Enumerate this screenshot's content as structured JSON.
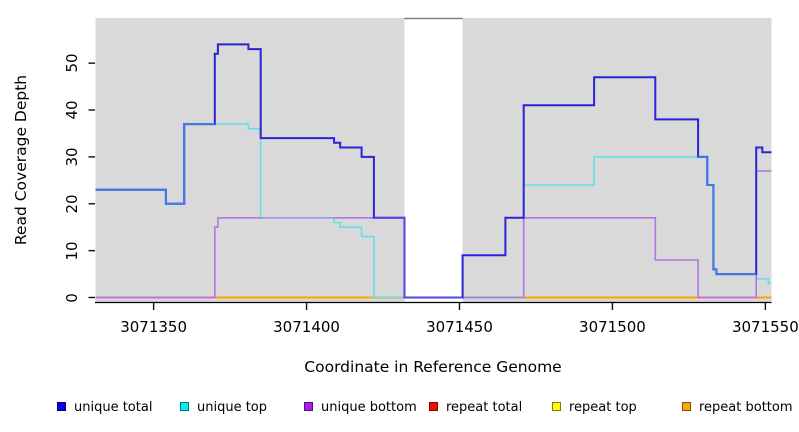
{
  "chart_data": {
    "type": "line",
    "subtype": "step-coverage-plot",
    "title": "",
    "xlabel": "Coordinate in Reference Genome",
    "ylabel": "Read Coverage Depth",
    "xlim": [
      3071331,
      3071552
    ],
    "ylim": [
      0,
      60
    ],
    "x_ticks": [
      3071350,
      3071400,
      3071450,
      3071500,
      3071550
    ],
    "x_tick_labels": [
      "3071350",
      "3071400",
      "3071450",
      "3071500",
      "3071550"
    ],
    "y_ticks": [
      0,
      10,
      20,
      30,
      40,
      50
    ],
    "y_tick_labels": [
      "0",
      "10",
      "20",
      "30",
      "40",
      "50"
    ],
    "grid": false,
    "plot_background": "#d9d9d9",
    "gap_region": {
      "x0": 3071432,
      "x1": 3071451,
      "color": "#ffffff",
      "top_border_color": "#808080"
    },
    "legend_position": "bottom",
    "series": [
      {
        "name": "unique total",
        "color": "#2a23d9",
        "width": 2,
        "step_points": [
          [
            3071331,
            23
          ],
          [
            3071354,
            20
          ],
          [
            3071360,
            37
          ],
          [
            3071370,
            52
          ],
          [
            3071371,
            54
          ],
          [
            3071381,
            53
          ],
          [
            3071385,
            34
          ],
          [
            3071409,
            33
          ],
          [
            3071411,
            32
          ],
          [
            3071418,
            30
          ],
          [
            3071422,
            17
          ],
          [
            3071432,
            0
          ],
          [
            3071451,
            9
          ],
          [
            3071465,
            17
          ],
          [
            3071471,
            41
          ],
          [
            3071494,
            47
          ],
          [
            3071514,
            38
          ],
          [
            3071528,
            30
          ],
          [
            3071531,
            24
          ],
          [
            3071533,
            6
          ],
          [
            3071534,
            5
          ],
          [
            3071547,
            32
          ],
          [
            3071549,
            31
          ]
        ],
        "end_x": 3071552
      },
      {
        "name": "unique top",
        "color": "#63dfe8",
        "width": 1.6,
        "step_points": [
          [
            3071331,
            23
          ],
          [
            3071354,
            20
          ],
          [
            3071360,
            37
          ],
          [
            3071381,
            36
          ],
          [
            3071385,
            17
          ],
          [
            3071409,
            16
          ],
          [
            3071411,
            15
          ],
          [
            3071418,
            13
          ],
          [
            3071422,
            0
          ],
          [
            3071471,
            24
          ],
          [
            3071494,
            30
          ],
          [
            3071531,
            24
          ],
          [
            3071533,
            6
          ],
          [
            3071534,
            5
          ],
          [
            3071547,
            4
          ],
          [
            3071551,
            3
          ]
        ],
        "end_x": 3071552
      },
      {
        "name": "unique bottom",
        "color": "#b275e2",
        "width": 1.6,
        "step_points": [
          [
            3071331,
            0
          ],
          [
            3071370,
            15
          ],
          [
            3071371,
            17
          ],
          [
            3071432,
            0
          ],
          [
            3071471,
            17
          ],
          [
            3071514,
            8
          ],
          [
            3071528,
            0
          ],
          [
            3071547,
            27
          ]
        ],
        "end_x": 3071552
      },
      {
        "name": "repeat total",
        "color": "#ee0000",
        "width": 1.8,
        "constant_value": 0
      },
      {
        "name": "repeat top",
        "color": "#ffff00",
        "width": 1.8,
        "constant_value": 0
      },
      {
        "name": "repeat bottom",
        "color": "#ffa500",
        "width": 1.8,
        "constant_value": 0
      }
    ],
    "zero_line_rendered_segments": [
      {
        "x0": 3071331,
        "x1": 3071370,
        "color": "#e8799b"
      },
      {
        "x0": 3071370,
        "x1": 3071432,
        "color": "#ffa500"
      },
      {
        "x0": 3071432,
        "x1": 3071451,
        "color": "#6355e8"
      },
      {
        "x0": 3071451,
        "x1": 3071471,
        "color": "#63bb7c"
      },
      {
        "x0": 3071471,
        "x1": 3071528,
        "color": "#ffa500"
      },
      {
        "x0": 3071528,
        "x1": 3071547,
        "color": "#e8799b"
      },
      {
        "x0": 3071547,
        "x1": 3071552,
        "color": "#ffa500"
      }
    ],
    "overlap_blend_segments": [
      {
        "color": "#8fa0e8",
        "width": 1.3,
        "points": [
          [
            3071385,
            17
          ]
        ],
        "end_x": 3071409
      },
      {
        "color": "#5b48e4",
        "width": 1.8,
        "points": [
          [
            3071422,
            17
          ],
          [
            3071432,
            0
          ]
        ],
        "end_x": 3071451
      },
      {
        "color": "#3f7be8",
        "width": 2,
        "points": [
          [
            3071331,
            23
          ],
          [
            3071354,
            20
          ],
          [
            3071360,
            37
          ]
        ],
        "end_x": 3071370
      },
      {
        "color": "#3f7be8",
        "width": 2,
        "points": [
          [
            3071528,
            30
          ],
          [
            3071531,
            24
          ],
          [
            3071533,
            6
          ],
          [
            3071534,
            5
          ]
        ],
        "end_x": 3071547
      }
    ],
    "legend": [
      {
        "label": "unique total",
        "swatch_color": "#0d00f2",
        "x": 57
      },
      {
        "label": "unique top",
        "swatch_color": "#00f0f0",
        "x": 180
      },
      {
        "label": "unique bottom",
        "swatch_color": "#a81ee8",
        "x": 304
      },
      {
        "label": "repeat total",
        "swatch_color": "#f20d00",
        "x": 429
      },
      {
        "label": "repeat top",
        "swatch_color": "#fdff00",
        "x": 552
      },
      {
        "label": "repeat bottom",
        "swatch_color": "#ffa600",
        "x": 682
      }
    ]
  },
  "layout_text": {
    "x_axis_title": "Coordinate in Reference Genome",
    "y_axis_title": "Read Coverage Depth"
  }
}
